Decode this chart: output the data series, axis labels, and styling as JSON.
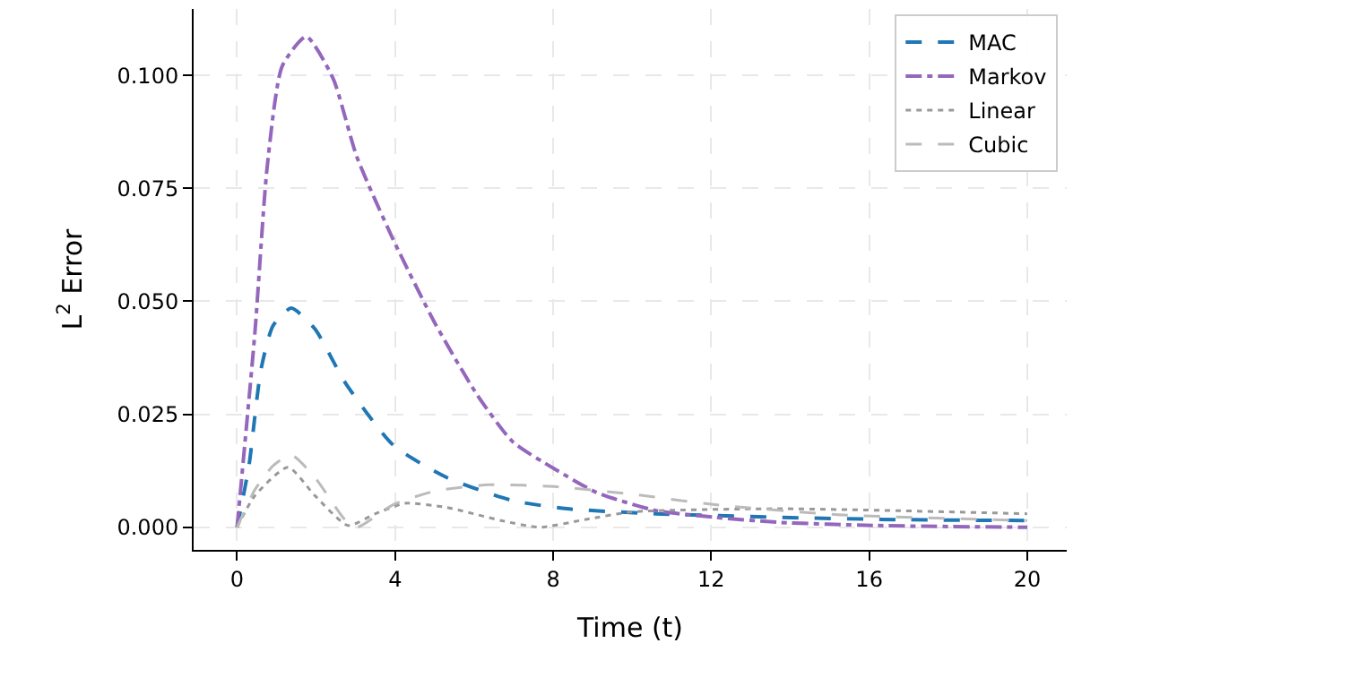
{
  "chart_data": {
    "type": "line",
    "xlabel": "Time (t)",
    "ylabel": "L$^{2}$ Error",
    "xlim": [
      -1.1,
      21
    ],
    "ylim": [
      -0.005,
      0.1147
    ],
    "xticks": [
      0,
      4,
      8,
      12,
      16,
      20
    ],
    "yticks": [
      {
        "value": 0,
        "label": "0.000"
      },
      {
        "value": 0.025,
        "label": "0.025"
      },
      {
        "value": 0.05,
        "label": "0.050"
      },
      {
        "value": 0.075,
        "label": "0.075"
      },
      {
        "value": 0.1,
        "label": "0.100"
      }
    ],
    "grid": true,
    "legend": "top right",
    "marker": "none",
    "series": [
      {
        "name": "MAC",
        "color": "#1f77b4",
        "line_style": "dashed",
        "x": [
          0,
          0.3,
          0.6,
          0.91,
          1.37,
          1.97,
          2.73,
          3.95,
          5.31,
          6.98,
          8.35,
          10.6,
          13.7,
          16.7,
          20
        ],
        "values": [
          0,
          0.0136,
          0.0347,
          0.0446,
          0.0485,
          0.0439,
          0.0321,
          0.0182,
          0.011,
          0.0059,
          0.0041,
          0.003,
          0.0022,
          0.0017,
          0.0015
        ]
      },
      {
        "name": "Markov",
        "color": "#9467bd",
        "line_style": "dashdot",
        "x": [
          0,
          0.45,
          0.76,
          1.14,
          1.75,
          2.43,
          3.03,
          3.95,
          5.0,
          6.07,
          6.98,
          8.04,
          9.1,
          10.6,
          12.1,
          13.7,
          16.1,
          20
        ],
        "values": [
          0,
          0.043,
          0.0796,
          0.102,
          0.1086,
          0.0993,
          0.082,
          0.0637,
          0.0453,
          0.0294,
          0.0189,
          0.0129,
          0.0077,
          0.0037,
          0.0022,
          0.0011,
          0.0004,
          0
        ]
      },
      {
        "name": "Linear",
        "color": "#999999",
        "line_style": "dotted",
        "x": [
          0,
          0.45,
          1.29,
          1.97,
          2.81,
          3.5,
          4.25,
          5.3,
          6.68,
          7.66,
          8.8,
          10.0,
          13.7,
          20
        ],
        "values": [
          0,
          0.007,
          0.0133,
          0.007,
          0.0004,
          0.003,
          0.0053,
          0.0044,
          0.0015,
          0,
          0.0017,
          0.0034,
          0.0041,
          0.003
        ]
      },
      {
        "name": "Cubic",
        "color": "#bbbbbb",
        "line_style": "dashed",
        "x": [
          0,
          0.45,
          0.91,
          1.37,
          1.97,
          2.73,
          3.03,
          3.95,
          5.0,
          6.37,
          8.04,
          10.0,
          12.1,
          15.2,
          20
        ],
        "values": [
          0,
          0.0083,
          0.0136,
          0.016,
          0.011,
          0.0017,
          0,
          0.005,
          0.008,
          0.0094,
          0.009,
          0.0073,
          0.005,
          0.0028,
          0.0015
        ]
      }
    ]
  }
}
